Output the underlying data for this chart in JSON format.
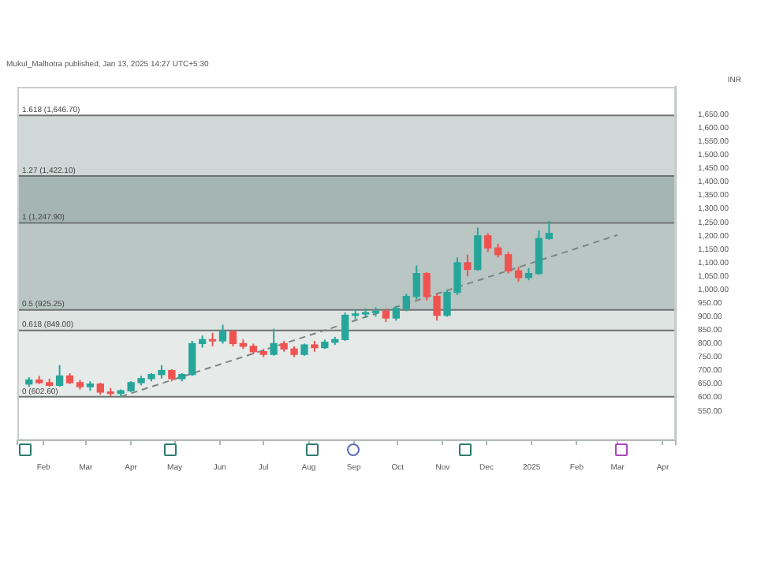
{
  "chart_data": {
    "type": "candlestick",
    "title": "Mukul_Malhotra published, Jan 13, 2025 14:27 UTC+5:30",
    "ylabel": "INR",
    "x": [
      "2024-01-22",
      "2024-01-29",
      "2024-02-05",
      "2024-02-12",
      "2024-02-19",
      "2024-02-26",
      "2024-03-04",
      "2024-03-11",
      "2024-03-18",
      "2024-03-25",
      "2024-04-01",
      "2024-04-08",
      "2024-04-15",
      "2024-04-22",
      "2024-04-29",
      "2024-05-06",
      "2024-05-13",
      "2024-05-20",
      "2024-05-27",
      "2024-06-03",
      "2024-06-10",
      "2024-06-17",
      "2024-06-24",
      "2024-07-01",
      "2024-07-08",
      "2024-07-15",
      "2024-07-22",
      "2024-07-29",
      "2024-08-05",
      "2024-08-12",
      "2024-08-19",
      "2024-08-26",
      "2024-09-02",
      "2024-09-09",
      "2024-09-16",
      "2024-09-23",
      "2024-09-30",
      "2024-10-07",
      "2024-10-14",
      "2024-10-21",
      "2024-10-28",
      "2024-11-04",
      "2024-11-11",
      "2024-11-18",
      "2024-11-25",
      "2024-12-02",
      "2024-12-09",
      "2024-12-16",
      "2024-12-23",
      "2024-12-30",
      "2025-01-06",
      "2025-01-13"
    ],
    "ohlc": [
      [
        650,
        675,
        640,
        665
      ],
      [
        665,
        680,
        650,
        655
      ],
      [
        655,
        670,
        640,
        645
      ],
      [
        645,
        720,
        640,
        680
      ],
      [
        680,
        690,
        650,
        655
      ],
      [
        655,
        665,
        630,
        640
      ],
      [
        640,
        660,
        625,
        650
      ],
      [
        650,
        655,
        610,
        620
      ],
      [
        620,
        635,
        605,
        615
      ],
      [
        615,
        630,
        603,
        625
      ],
      [
        625,
        660,
        620,
        655
      ],
      [
        655,
        680,
        645,
        670
      ],
      [
        670,
        690,
        660,
        685
      ],
      [
        685,
        720,
        670,
        700
      ],
      [
        700,
        705,
        660,
        670
      ],
      [
        670,
        690,
        660,
        685
      ],
      [
        685,
        810,
        680,
        800
      ],
      [
        800,
        830,
        785,
        815
      ],
      [
        815,
        840,
        790,
        810
      ],
      [
        810,
        870,
        800,
        845
      ],
      [
        845,
        850,
        790,
        800
      ],
      [
        800,
        815,
        780,
        790
      ],
      [
        790,
        800,
        760,
        770
      ],
      [
        770,
        780,
        750,
        760
      ],
      [
        760,
        855,
        755,
        800
      ],
      [
        800,
        810,
        770,
        780
      ],
      [
        780,
        790,
        750,
        760
      ],
      [
        760,
        800,
        755,
        795
      ],
      [
        795,
        810,
        770,
        785
      ],
      [
        785,
        815,
        780,
        805
      ],
      [
        805,
        825,
        795,
        815
      ],
      [
        815,
        915,
        810,
        905
      ],
      [
        905,
        925,
        890,
        910
      ],
      [
        910,
        930,
        895,
        915
      ],
      [
        915,
        935,
        900,
        920
      ],
      [
        920,
        930,
        880,
        895
      ],
      [
        895,
        940,
        885,
        930
      ],
      [
        930,
        985,
        920,
        975
      ],
      [
        975,
        1090,
        965,
        1060
      ],
      [
        1060,
        1065,
        960,
        975
      ],
      [
        975,
        985,
        885,
        905
      ],
      [
        905,
        1000,
        900,
        990
      ],
      [
        990,
        1120,
        980,
        1100
      ],
      [
        1100,
        1130,
        1050,
        1075
      ],
      [
        1075,
        1230,
        1070,
        1200
      ],
      [
        1200,
        1210,
        1140,
        1155
      ],
      [
        1155,
        1170,
        1120,
        1130
      ],
      [
        1130,
        1140,
        1060,
        1070
      ],
      [
        1070,
        1085,
        1030,
        1045
      ],
      [
        1045,
        1080,
        1035,
        1060
      ],
      [
        1060,
        1220,
        1055,
        1190
      ],
      [
        1190,
        1255,
        1185,
        1209
      ]
    ],
    "colors": [
      "#26a69a",
      "#ef5350",
      "#ef5350",
      "#26a69a",
      "#ef5350",
      "#ef5350",
      "#26a69a",
      "#ef5350",
      "#ef5350",
      "#26a69a",
      "#26a69a",
      "#26a69a",
      "#26a69a",
      "#26a69a",
      "#ef5350",
      "#26a69a",
      "#26a69a",
      "#26a69a",
      "#ef5350",
      "#26a69a",
      "#ef5350",
      "#ef5350",
      "#ef5350",
      "#ef5350",
      "#26a69a",
      "#ef5350",
      "#ef5350",
      "#26a69a",
      "#ef5350",
      "#26a69a",
      "#26a69a",
      "#26a69a",
      "#26a69a",
      "#26a69a",
      "#26a69a",
      "#ef5350",
      "#26a69a",
      "#26a69a",
      "#26a69a",
      "#ef5350",
      "#ef5350",
      "#26a69a",
      "#26a69a",
      "#ef5350",
      "#26a69a",
      "#ef5350",
      "#ef5350",
      "#ef5350",
      "#ef5350",
      "#26a69a",
      "#26a69a",
      "#26a69a"
    ],
    "series": [
      {
        "type": "line",
        "x": [
          "2024-03-25",
          "2025-03-01"
        ],
        "values": [
          603,
          1203
        ],
        "color": "#7d8583",
        "line_style": "dashed"
      }
    ],
    "xlim": [
      "2024-01-14",
      "2025-04-10"
    ],
    "xticks": [
      {
        "value": "2024-01-14",
        "label": null
      },
      {
        "value": "2024-02-01",
        "label": "Feb"
      },
      {
        "value": "2024-03-01",
        "label": "Mar"
      },
      {
        "value": "2024-04-01",
        "label": "Apr"
      },
      {
        "value": "2024-05-01",
        "label": "May"
      },
      {
        "value": "2024-06-01",
        "label": "Jun"
      },
      {
        "value": "2024-07-01",
        "label": "Jul"
      },
      {
        "value": "2024-08-01",
        "label": "Aug"
      },
      {
        "value": "2024-09-01",
        "label": "Sep"
      },
      {
        "value": "2024-10-01",
        "label": "Oct"
      },
      {
        "value": "2024-11-01",
        "label": "Nov"
      },
      {
        "value": "2024-12-01",
        "label": "Dec"
      },
      {
        "value": "2025-01-01",
        "label": "2025"
      },
      {
        "value": "2025-02-01",
        "label": "Feb"
      },
      {
        "value": "2025-03-01",
        "label": "Mar"
      },
      {
        "value": "2025-04-01",
        "label": "Apr"
      },
      {
        "value": "2025-04-10",
        "label": null
      }
    ],
    "ylim": [
      441,
      1753
    ],
    "yticks": [
      {
        "value": 550,
        "label": "550.00"
      },
      {
        "value": 600,
        "label": "600.00"
      },
      {
        "value": 650,
        "label": "650.00"
      },
      {
        "value": 700,
        "label": "700.00"
      },
      {
        "value": 750,
        "label": "750.00"
      },
      {
        "value": 800,
        "label": "800.00"
      },
      {
        "value": 850,
        "label": "850.00"
      },
      {
        "value": 900,
        "label": "900.00"
      },
      {
        "value": 950,
        "label": "950.00"
      },
      {
        "value": 1000,
        "label": "1,000.00"
      },
      {
        "value": 1050,
        "label": "1,050.00"
      },
      {
        "value": 1100,
        "label": "1,100.00"
      },
      {
        "value": 1150,
        "label": "1,150.00"
      },
      {
        "value": 1200,
        "label": "1,200.00"
      },
      {
        "value": 1250,
        "label": "1,250.00"
      },
      {
        "value": 1300,
        "label": "1,300.00"
      },
      {
        "value": 1350,
        "label": "1,350.00"
      },
      {
        "value": 1400,
        "label": "1,400.00"
      },
      {
        "value": 1450,
        "label": "1,450.00"
      },
      {
        "value": 1500,
        "label": "1,500.00"
      },
      {
        "value": 1550,
        "label": "1,550.00"
      },
      {
        "value": 1600,
        "label": "1,600.00"
      },
      {
        "value": 1650,
        "label": "1,650.00"
      }
    ],
    "bands": [
      {
        "axis": "y",
        "from": 602.6,
        "to": 849,
        "color": "#e6eae9"
      },
      {
        "axis": "y",
        "from": 849,
        "to": 925.25,
        "color": "#dde3e1"
      },
      {
        "axis": "y",
        "from": 925.25,
        "to": 1247.9,
        "color": "#b9c6c3"
      },
      {
        "axis": "y",
        "from": 1247.9,
        "to": 1422.1,
        "color": "#a5b5b2"
      },
      {
        "axis": "y",
        "from": 1422.1,
        "to": 1646.7,
        "color": "#cfd8d6"
      }
    ],
    "ref_lines": [
      {
        "axis": "y",
        "value": 602.6,
        "label": "0 (602.60)",
        "color": "#6d7472"
      },
      {
        "axis": "y",
        "value": 849,
        "label": "0.618 (849.00)",
        "color": "#6d7472"
      },
      {
        "axis": "y",
        "value": 925.25,
        "label": "0.5 (925.25)",
        "color": "#6d7472"
      },
      {
        "axis": "y",
        "value": 1247.9,
        "label": "1 (1,247.90)",
        "color": "#6d7472"
      },
      {
        "axis": "y",
        "value": 1422.1,
        "label": "1.27 (1,422.10)",
        "color": "#6d7472"
      },
      {
        "axis": "y",
        "value": 1646.7,
        "label": "1.618 (1,646.70)",
        "color": "#6d7472"
      }
    ]
  }
}
